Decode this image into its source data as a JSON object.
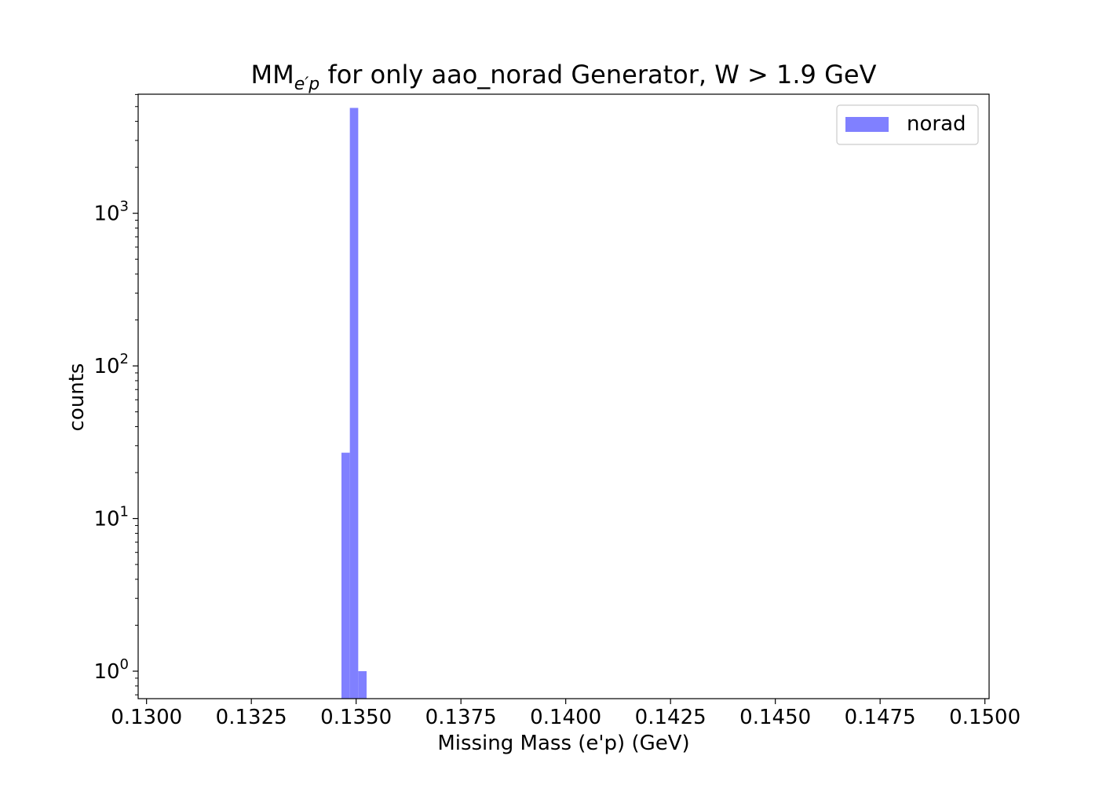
{
  "chart_data": {
    "type": "bar",
    "title": {
      "prefix": "MM",
      "subscript": "e′p",
      "suffix": " for only aao_norad Generator, W > 1.9 GeV"
    },
    "xlabel": "Missing Mass (e'p) (GeV)",
    "ylabel": "counts",
    "xlim": [
      0.1298,
      0.1501
    ],
    "ylim_log10": [
      -0.18,
      3.78
    ],
    "y_scale": "log",
    "x_ticks": [
      "0.1300",
      "0.1325",
      "0.1350",
      "0.1375",
      "0.1400",
      "0.1425",
      "0.1450",
      "0.1475",
      "0.1500"
    ],
    "y_ticks": [
      {
        "base": "10",
        "exp": "0"
      },
      {
        "base": "10",
        "exp": "1"
      },
      {
        "base": "10",
        "exp": "2"
      },
      {
        "base": "10",
        "exp": "3"
      }
    ],
    "grid": false,
    "legend": {
      "placement": "top-right"
    },
    "series": [
      {
        "name": "norad",
        "color": "#8080ff",
        "bins": [
          {
            "x0": 0.13465,
            "x1": 0.13485,
            "count": 27
          },
          {
            "x0": 0.13485,
            "x1": 0.13505,
            "count": 4900
          },
          {
            "x0": 0.13505,
            "x1": 0.13525,
            "count": 1
          }
        ]
      }
    ]
  }
}
